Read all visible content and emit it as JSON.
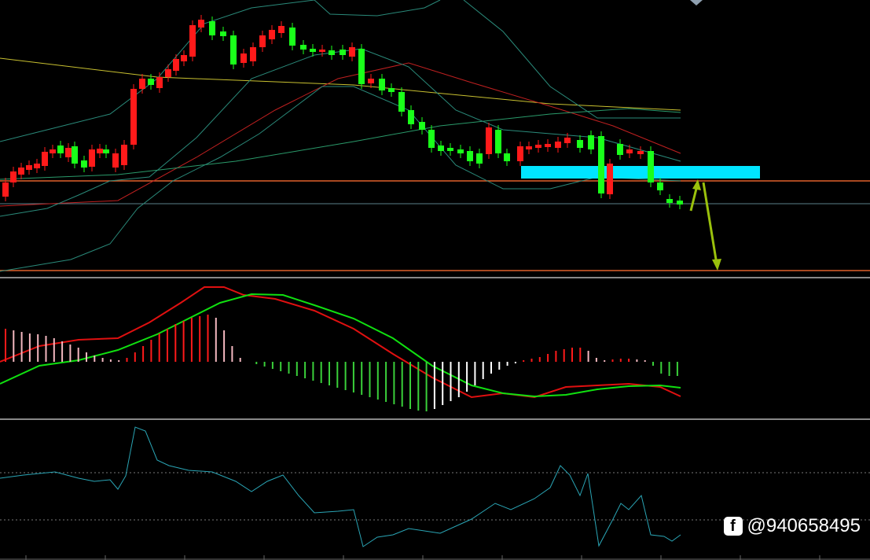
{
  "watermark": {
    "text": "@940658495"
  }
}
